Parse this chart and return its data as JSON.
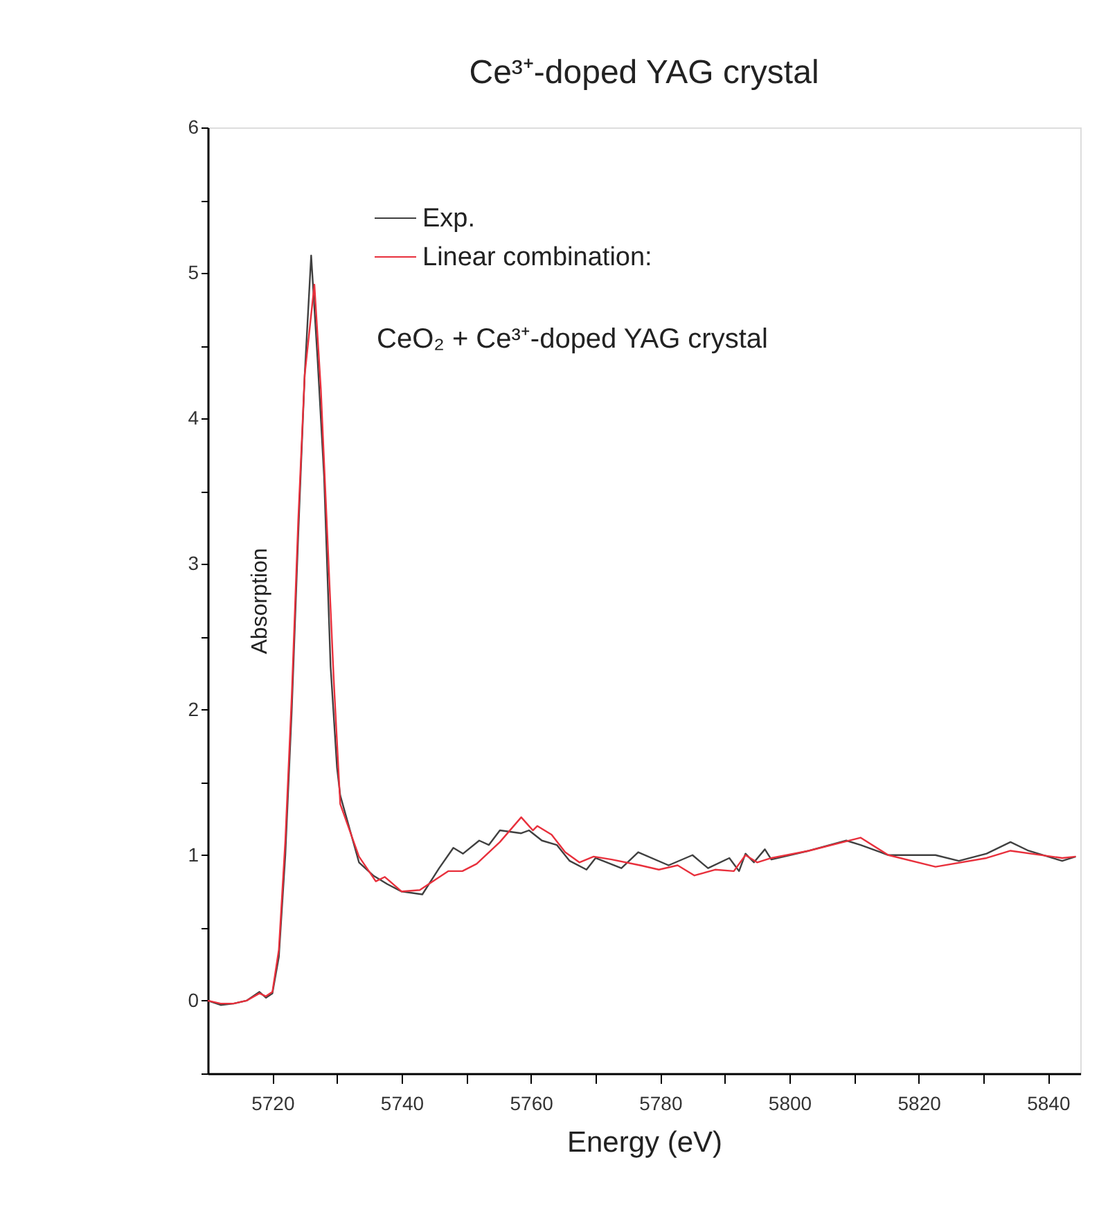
{
  "chart_data": {
    "type": "line",
    "title": "Ce³⁺-doped YAG crystal",
    "xlabel": "Energy (eV)",
    "ylabel": "Absorption",
    "xlim": [
      5710,
      5845
    ],
    "ylim": [
      -0.5,
      6
    ],
    "xticks": [
      5720,
      {
        "value": 5730,
        "label": null
      },
      5740,
      {
        "value": 5750,
        "label": null
      },
      5760,
      {
        "value": 5770,
        "label": null
      },
      5780,
      {
        "value": 5790,
        "label": null
      },
      5800,
      {
        "value": 5810,
        "label": null
      },
      5820,
      {
        "value": 5830,
        "label": null
      },
      5840
    ],
    "yticks": [
      {
        "value": -0.5,
        "label": null
      },
      0,
      {
        "value": 0.5,
        "label": null
      },
      1,
      {
        "value": 1.5,
        "label": null
      },
      2,
      {
        "value": 2.5,
        "label": null
      },
      3,
      {
        "value": 3.5,
        "label": null
      },
      4,
      {
        "value": 4.5,
        "label": null
      },
      5,
      {
        "value": 5.5,
        "label": null
      },
      6
    ],
    "grid": false,
    "legend": "top left",
    "marker": "none",
    "line_style": "solid",
    "annotations": [
      "CeO₂ + Ce³⁺-doped YAG crystal"
    ],
    "series": [
      {
        "name": "Exp.",
        "color": "#404040",
        "x": [
          5710,
          5712,
          5714,
          5716,
          5718,
          5719,
          5720,
          5721,
          5722,
          5723,
          5724,
          5725,
          5726,
          5727,
          5728,
          5729,
          5730,
          5730.5,
          5733.4,
          5735.6,
          5737.8,
          5740,
          5743.2,
          5745.8,
          5748,
          5749.5,
          5752,
          5753.5,
          5755.2,
          5758.5,
          5759.7,
          5761.7,
          5764,
          5766,
          5768.6,
          5770,
          5774,
          5776.6,
          5781.3,
          5785,
          5787.4,
          5790.7,
          5792.2,
          5793.2,
          5794.5,
          5796.2,
          5797.2,
          5803,
          5808.8,
          5811,
          5815.3,
          5822.6,
          5826.2,
          5830.5,
          5834.2,
          5837,
          5842.2,
          5844.3
        ],
        "values": [
          0,
          -0.03,
          -0.02,
          0.0,
          0.06,
          0.02,
          0.05,
          0.3,
          1.0,
          2.0,
          3.2,
          4.3,
          5.12,
          4.4,
          3.6,
          2.3,
          1.6,
          1.41,
          0.95,
          0.86,
          0.8,
          0.75,
          0.73,
          0.91,
          1.05,
          1.01,
          1.1,
          1.07,
          1.17,
          1.15,
          1.17,
          1.1,
          1.07,
          0.96,
          0.9,
          0.98,
          0.91,
          1.02,
          0.93,
          1.0,
          0.91,
          0.98,
          0.89,
          1.01,
          0.95,
          1.04,
          0.97,
          1.03,
          1.1,
          1.07,
          1.0,
          1.0,
          0.96,
          1.01,
          1.09,
          1.03,
          0.96,
          0.99
        ]
      },
      {
        "name": "Linear combination:",
        "color": "#e8303c",
        "x": [
          5710,
          5712,
          5714,
          5716,
          5718,
          5719,
          5720,
          5721,
          5722,
          5723,
          5724,
          5725,
          5726.5,
          5727.5,
          5728.5,
          5729.5,
          5730.5,
          5733.4,
          5736,
          5737.4,
          5740,
          5742.8,
          5747.2,
          5749.4,
          5751.6,
          5755.2,
          5758.5,
          5760.3,
          5761,
          5763.2,
          5765.3,
          5767.5,
          5769.7,
          5772.5,
          5776.9,
          5779.8,
          5782.7,
          5785.3,
          5788.5,
          5791.4,
          5793.2,
          5795,
          5797.2,
          5803,
          5811,
          5815.3,
          5822.6,
          5830.5,
          5834.2,
          5842.2,
          5844.3
        ],
        "values": [
          0,
          -0.02,
          -0.02,
          0.0,
          0.05,
          0.03,
          0.06,
          0.35,
          1.1,
          2.1,
          3.3,
          4.3,
          4.92,
          4.2,
          3.2,
          2.2,
          1.35,
          0.99,
          0.82,
          0.85,
          0.75,
          0.76,
          0.89,
          0.89,
          0.94,
          1.09,
          1.26,
          1.17,
          1.2,
          1.14,
          1.02,
          0.95,
          0.99,
          0.97,
          0.93,
          0.9,
          0.93,
          0.86,
          0.9,
          0.89,
          1.0,
          0.95,
          0.98,
          1.03,
          1.12,
          1.0,
          0.92,
          0.98,
          1.03,
          0.98,
          0.99
        ]
      }
    ]
  }
}
